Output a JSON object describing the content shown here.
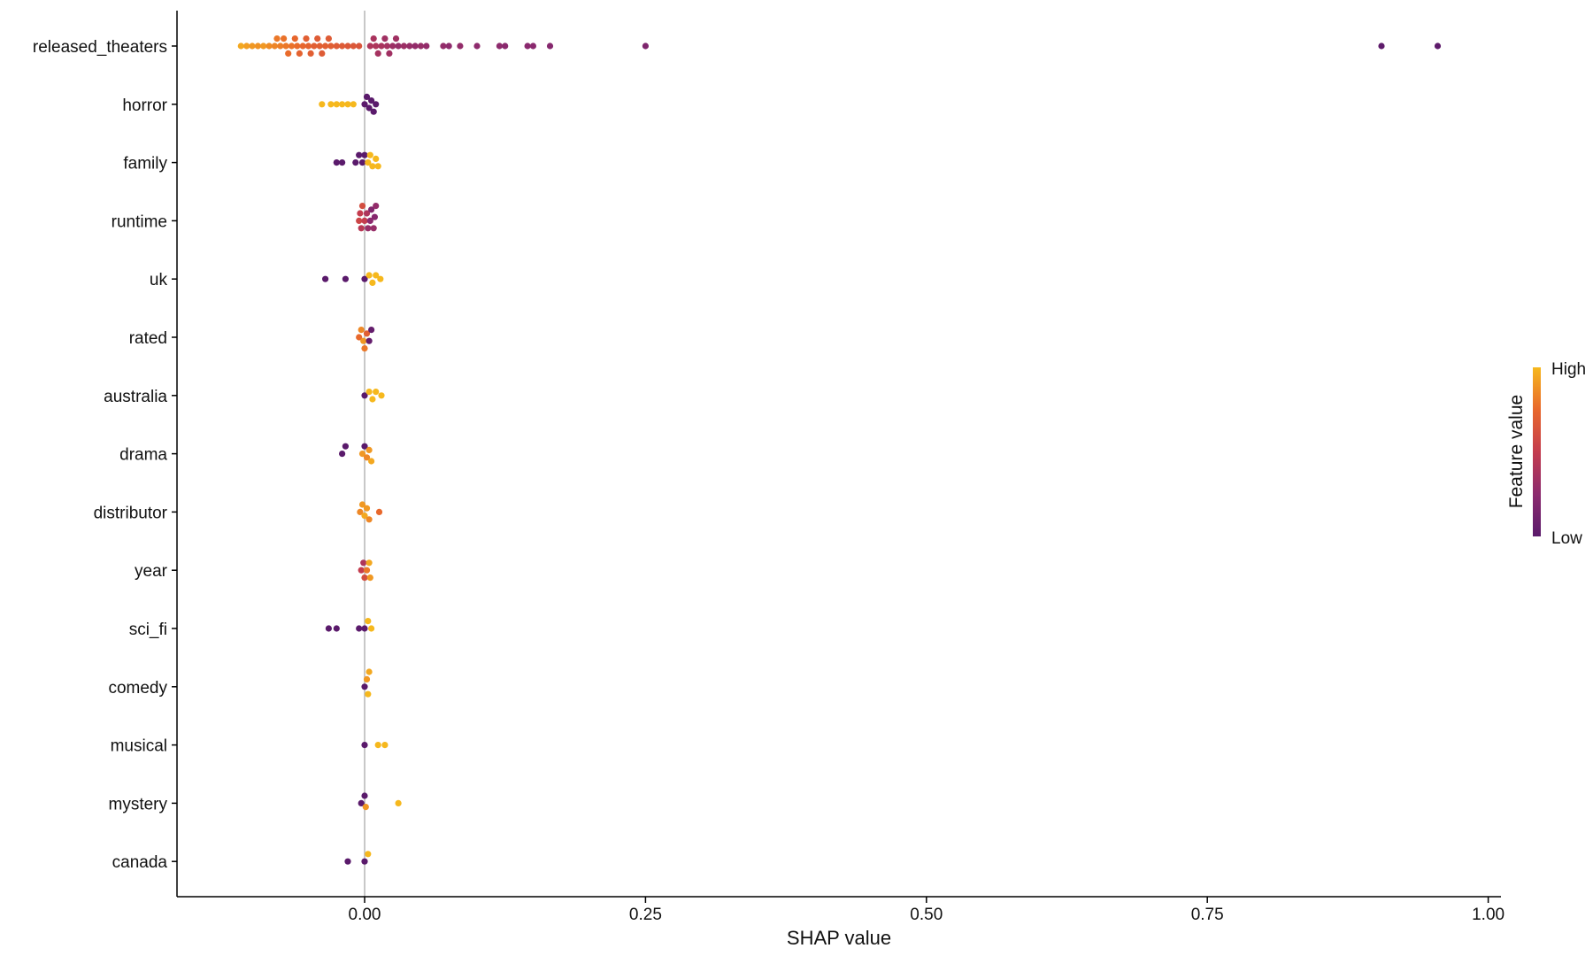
{
  "chart_data": {
    "type": "scatter",
    "subtype": "shap-beeswarm",
    "xlabel": "SHAP value",
    "ylabel": "",
    "xlim": [
      -0.165,
      1.01
    ],
    "xticks": [
      0.0,
      0.25,
      0.5,
      0.75,
      1.0
    ],
    "xtick_labels": [
      "0.00",
      "0.25",
      "0.50",
      "0.75",
      "1.00"
    ],
    "zero_line": true,
    "grid": false,
    "legend": {
      "title": "Feature value",
      "high_label": "High",
      "low_label": "Low",
      "placement": "right"
    },
    "color_scale": [
      "#5a1a6b",
      "#8c2a6e",
      "#c43c4e",
      "#e8682c",
      "#f6b81d"
    ],
    "features": [
      {
        "name": "released_theaters",
        "points": [
          [
            -0.11,
            0.95
          ],
          [
            -0.105,
            0.92
          ],
          [
            -0.1,
            0.9
          ],
          [
            -0.095,
            0.88
          ],
          [
            -0.09,
            0.9
          ],
          [
            -0.085,
            0.86
          ],
          [
            -0.08,
            0.84
          ],
          [
            -0.078,
            0.8
          ],
          [
            -0.075,
            0.82
          ],
          [
            -0.072,
            0.78
          ],
          [
            -0.07,
            0.8
          ],
          [
            -0.068,
            0.76
          ],
          [
            -0.065,
            0.78
          ],
          [
            -0.062,
            0.74
          ],
          [
            -0.06,
            0.76
          ],
          [
            -0.058,
            0.72
          ],
          [
            -0.055,
            0.74
          ],
          [
            -0.052,
            0.7
          ],
          [
            -0.05,
            0.72
          ],
          [
            -0.048,
            0.7
          ],
          [
            -0.045,
            0.7
          ],
          [
            -0.042,
            0.68
          ],
          [
            -0.04,
            0.7
          ],
          [
            -0.038,
            0.68
          ],
          [
            -0.035,
            0.7
          ],
          [
            -0.032,
            0.68
          ],
          [
            -0.03,
            0.7
          ],
          [
            -0.025,
            0.68
          ],
          [
            -0.02,
            0.68
          ],
          [
            -0.015,
            0.66
          ],
          [
            -0.01,
            0.66
          ],
          [
            -0.005,
            0.64
          ],
          [
            0.005,
            0.4
          ],
          [
            0.008,
            0.38
          ],
          [
            0.01,
            0.4
          ],
          [
            0.012,
            0.36
          ],
          [
            0.015,
            0.38
          ],
          [
            0.018,
            0.34
          ],
          [
            0.02,
            0.36
          ],
          [
            0.022,
            0.34
          ],
          [
            0.025,
            0.32
          ],
          [
            0.028,
            0.34
          ],
          [
            0.03,
            0.3
          ],
          [
            0.035,
            0.32
          ],
          [
            0.04,
            0.3
          ],
          [
            0.045,
            0.28
          ],
          [
            0.05,
            0.3
          ],
          [
            0.055,
            0.28
          ],
          [
            0.07,
            0.28
          ],
          [
            0.075,
            0.26
          ],
          [
            0.085,
            0.28
          ],
          [
            0.1,
            0.26
          ],
          [
            0.12,
            0.26
          ],
          [
            0.125,
            0.24
          ],
          [
            0.145,
            0.24
          ],
          [
            0.15,
            0.24
          ],
          [
            0.165,
            0.22
          ],
          [
            0.25,
            0.18
          ],
          [
            0.905,
            0.02
          ],
          [
            0.955,
            0.02
          ]
        ]
      },
      {
        "name": "horror",
        "points": [
          [
            -0.038,
            1.0
          ],
          [
            -0.03,
            1.0
          ],
          [
            -0.025,
            1.0
          ],
          [
            -0.02,
            1.0
          ],
          [
            -0.015,
            1.0
          ],
          [
            -0.01,
            1.0
          ],
          [
            0.0,
            0.0
          ],
          [
            0.002,
            0.0
          ],
          [
            0.004,
            0.0
          ],
          [
            0.006,
            0.0
          ],
          [
            0.008,
            0.0
          ],
          [
            0.01,
            0.0
          ]
        ]
      },
      {
        "name": "family",
        "points": [
          [
            -0.025,
            0.0
          ],
          [
            -0.02,
            0.0
          ],
          [
            -0.008,
            0.0
          ],
          [
            -0.005,
            0.0
          ],
          [
            -0.002,
            0.0
          ],
          [
            0.0,
            0.0
          ],
          [
            0.003,
            1.0
          ],
          [
            0.005,
            1.0
          ],
          [
            0.007,
            1.0
          ],
          [
            0.01,
            1.0
          ],
          [
            0.012,
            1.0
          ]
        ]
      },
      {
        "name": "runtime",
        "points": [
          [
            -0.005,
            0.55
          ],
          [
            -0.004,
            0.5
          ],
          [
            -0.003,
            0.45
          ],
          [
            -0.002,
            0.6
          ],
          [
            0.0,
            0.5
          ],
          [
            0.002,
            0.4
          ],
          [
            0.003,
            0.3
          ],
          [
            0.005,
            0.25
          ],
          [
            0.006,
            0.2
          ],
          [
            0.008,
            0.3
          ],
          [
            0.009,
            0.22
          ],
          [
            0.01,
            0.28
          ]
        ]
      },
      {
        "name": "uk",
        "points": [
          [
            -0.035,
            0.0
          ],
          [
            -0.017,
            0.0
          ],
          [
            0.0,
            0.0
          ],
          [
            0.004,
            1.0
          ],
          [
            0.007,
            1.0
          ],
          [
            0.01,
            1.0
          ],
          [
            0.014,
            1.0
          ]
        ]
      },
      {
        "name": "rated",
        "points": [
          [
            -0.005,
            0.75
          ],
          [
            -0.003,
            0.85
          ],
          [
            -0.001,
            0.9
          ],
          [
            0.0,
            0.8
          ],
          [
            0.002,
            0.7
          ],
          [
            0.004,
            0.05
          ],
          [
            0.006,
            0.05
          ]
        ]
      },
      {
        "name": "australia",
        "points": [
          [
            0.0,
            0.0
          ],
          [
            0.004,
            1.0
          ],
          [
            0.007,
            1.0
          ],
          [
            0.01,
            1.0
          ],
          [
            0.015,
            1.0
          ]
        ]
      },
      {
        "name": "drama",
        "points": [
          [
            -0.02,
            0.0
          ],
          [
            -0.017,
            0.0
          ],
          [
            -0.002,
            0.9
          ],
          [
            0.0,
            0.0
          ],
          [
            0.002,
            0.85
          ],
          [
            0.004,
            0.9
          ],
          [
            0.006,
            0.95
          ]
        ]
      },
      {
        "name": "distributor",
        "points": [
          [
            -0.004,
            0.85
          ],
          [
            -0.002,
            0.9
          ],
          [
            0.0,
            0.95
          ],
          [
            0.002,
            0.9
          ],
          [
            0.004,
            0.85
          ],
          [
            0.013,
            0.75
          ]
        ]
      },
      {
        "name": "year",
        "points": [
          [
            -0.003,
            0.5
          ],
          [
            -0.001,
            0.4
          ],
          [
            0.0,
            0.6
          ],
          [
            0.002,
            0.8
          ],
          [
            0.004,
            0.95
          ],
          [
            0.005,
            0.9
          ]
        ]
      },
      {
        "name": "sci_fi",
        "points": [
          [
            -0.032,
            0.0
          ],
          [
            -0.025,
            0.0
          ],
          [
            -0.005,
            0.0
          ],
          [
            0.0,
            0.0
          ],
          [
            0.003,
            1.0
          ],
          [
            0.006,
            1.0
          ]
        ]
      },
      {
        "name": "comedy",
        "points": [
          [
            0.0,
            0.0
          ],
          [
            0.002,
            0.9
          ],
          [
            0.003,
            1.0
          ],
          [
            0.004,
            0.95
          ]
        ]
      },
      {
        "name": "musical",
        "points": [
          [
            0.0,
            0.0
          ],
          [
            0.012,
            1.0
          ],
          [
            0.018,
            1.0
          ]
        ]
      },
      {
        "name": "mystery",
        "points": [
          [
            -0.003,
            0.0
          ],
          [
            0.0,
            0.0
          ],
          [
            0.001,
            0.9
          ],
          [
            0.03,
            1.0
          ]
        ]
      },
      {
        "name": "canada",
        "points": [
          [
            -0.015,
            0.0
          ],
          [
            0.0,
            0.0
          ],
          [
            0.003,
            1.0
          ]
        ]
      }
    ]
  }
}
